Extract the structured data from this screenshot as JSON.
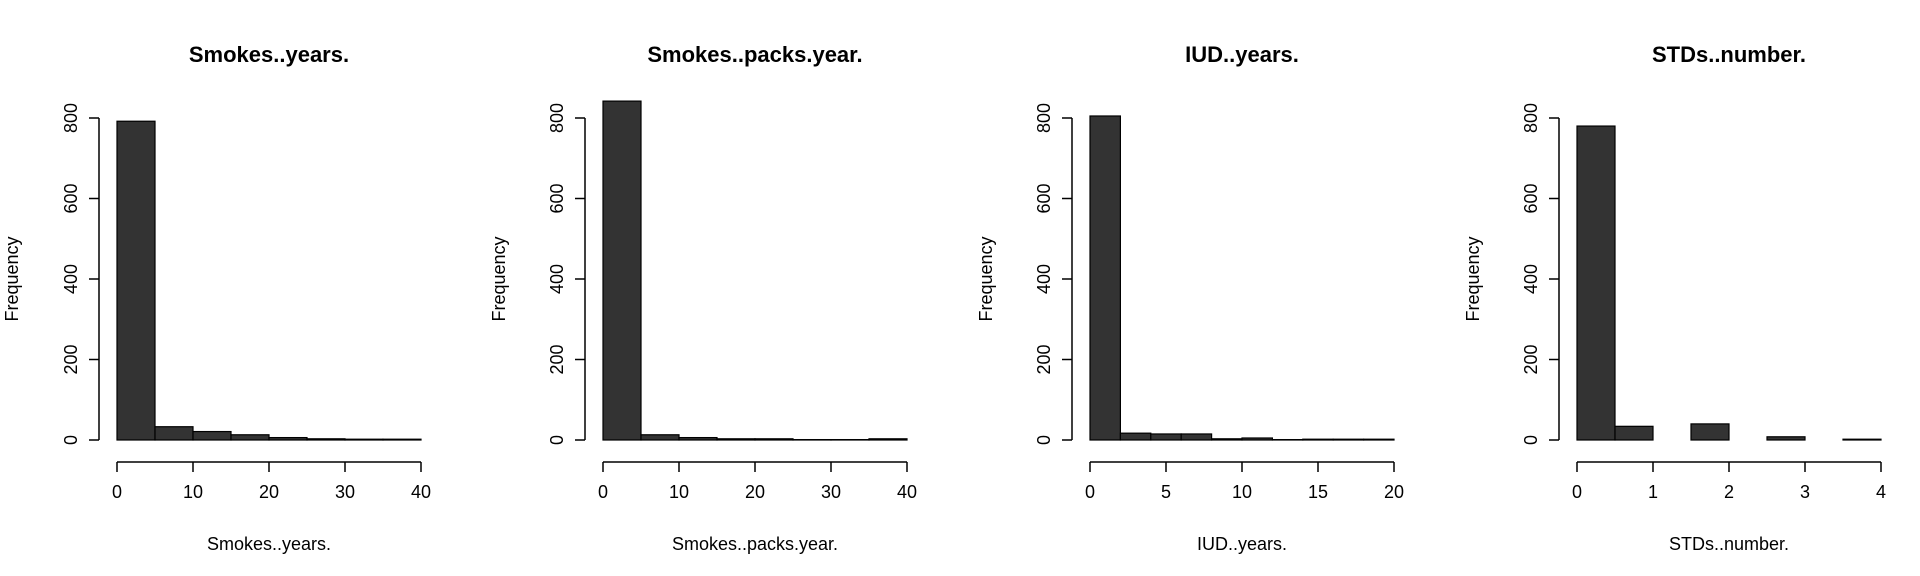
{
  "chart_data": [
    {
      "type": "bar",
      "title": "Smokes..years.",
      "xlabel": "Smokes..years.",
      "ylabel": "Frequency",
      "bins": [
        [
          0,
          5
        ],
        [
          5,
          10
        ],
        [
          10,
          15
        ],
        [
          15,
          20
        ],
        [
          20,
          25
        ],
        [
          25,
          30
        ],
        [
          30,
          35
        ],
        [
          35,
          40
        ]
      ],
      "values": [
        792,
        33,
        21,
        13,
        6,
        3,
        2,
        2
      ],
      "xticks": [
        0,
        10,
        20,
        30,
        40
      ],
      "yticks": [
        0,
        200,
        400,
        600,
        800
      ],
      "xlim": [
        0,
        40
      ],
      "ylim": [
        0,
        800
      ],
      "grid": false,
      "bar_color": "#333333"
    },
    {
      "type": "bar",
      "title": "Smokes..packs.year.",
      "xlabel": "Smokes..packs.year.",
      "ylabel": "Frequency",
      "bins": [
        [
          0,
          5
        ],
        [
          5,
          10
        ],
        [
          10,
          15
        ],
        [
          15,
          20
        ],
        [
          20,
          25
        ],
        [
          25,
          30
        ],
        [
          30,
          35
        ],
        [
          35,
          40
        ]
      ],
      "values": [
        842,
        13,
        6,
        3,
        3,
        1,
        1,
        3
      ],
      "xticks": [
        0,
        10,
        20,
        30,
        40
      ],
      "yticks": [
        0,
        200,
        400,
        600,
        800
      ],
      "xlim": [
        0,
        40
      ],
      "ylim": [
        0,
        800
      ],
      "grid": false,
      "bar_color": "#333333"
    },
    {
      "type": "bar",
      "title": "IUD..years.",
      "xlabel": "IUD..years.",
      "ylabel": "Frequency",
      "bins": [
        [
          0,
          2
        ],
        [
          2,
          4
        ],
        [
          4,
          6
        ],
        [
          6,
          8
        ],
        [
          8,
          10
        ],
        [
          10,
          12
        ],
        [
          12,
          14
        ],
        [
          14,
          16
        ],
        [
          16,
          18
        ],
        [
          18,
          20
        ]
      ],
      "values": [
        805,
        17,
        15,
        15,
        3,
        5,
        1,
        2,
        2,
        2
      ],
      "xticks": [
        0,
        5,
        10,
        15,
        20
      ],
      "yticks": [
        0,
        200,
        400,
        600,
        800
      ],
      "xlim": [
        0,
        20
      ],
      "ylim": [
        0,
        800
      ],
      "grid": false,
      "bar_color": "#333333"
    },
    {
      "type": "bar",
      "title": "STDs..number.",
      "xlabel": "STDs..number.",
      "ylabel": "Frequency",
      "bins": [
        [
          0,
          0.5
        ],
        [
          0.5,
          1
        ],
        [
          1,
          1.5
        ],
        [
          1.5,
          2
        ],
        [
          2,
          2.5
        ],
        [
          2.5,
          3
        ],
        [
          3,
          3.5
        ],
        [
          3.5,
          4
        ]
      ],
      "values": [
        780,
        34,
        0,
        40,
        0,
        8,
        0,
        2
      ],
      "xticks": [
        0,
        1,
        2,
        3,
        4
      ],
      "yticks": [
        0,
        200,
        400,
        600,
        800
      ],
      "xlim": [
        0,
        4
      ],
      "ylim": [
        0,
        800
      ],
      "grid": false,
      "bar_color": "#333333"
    }
  ]
}
